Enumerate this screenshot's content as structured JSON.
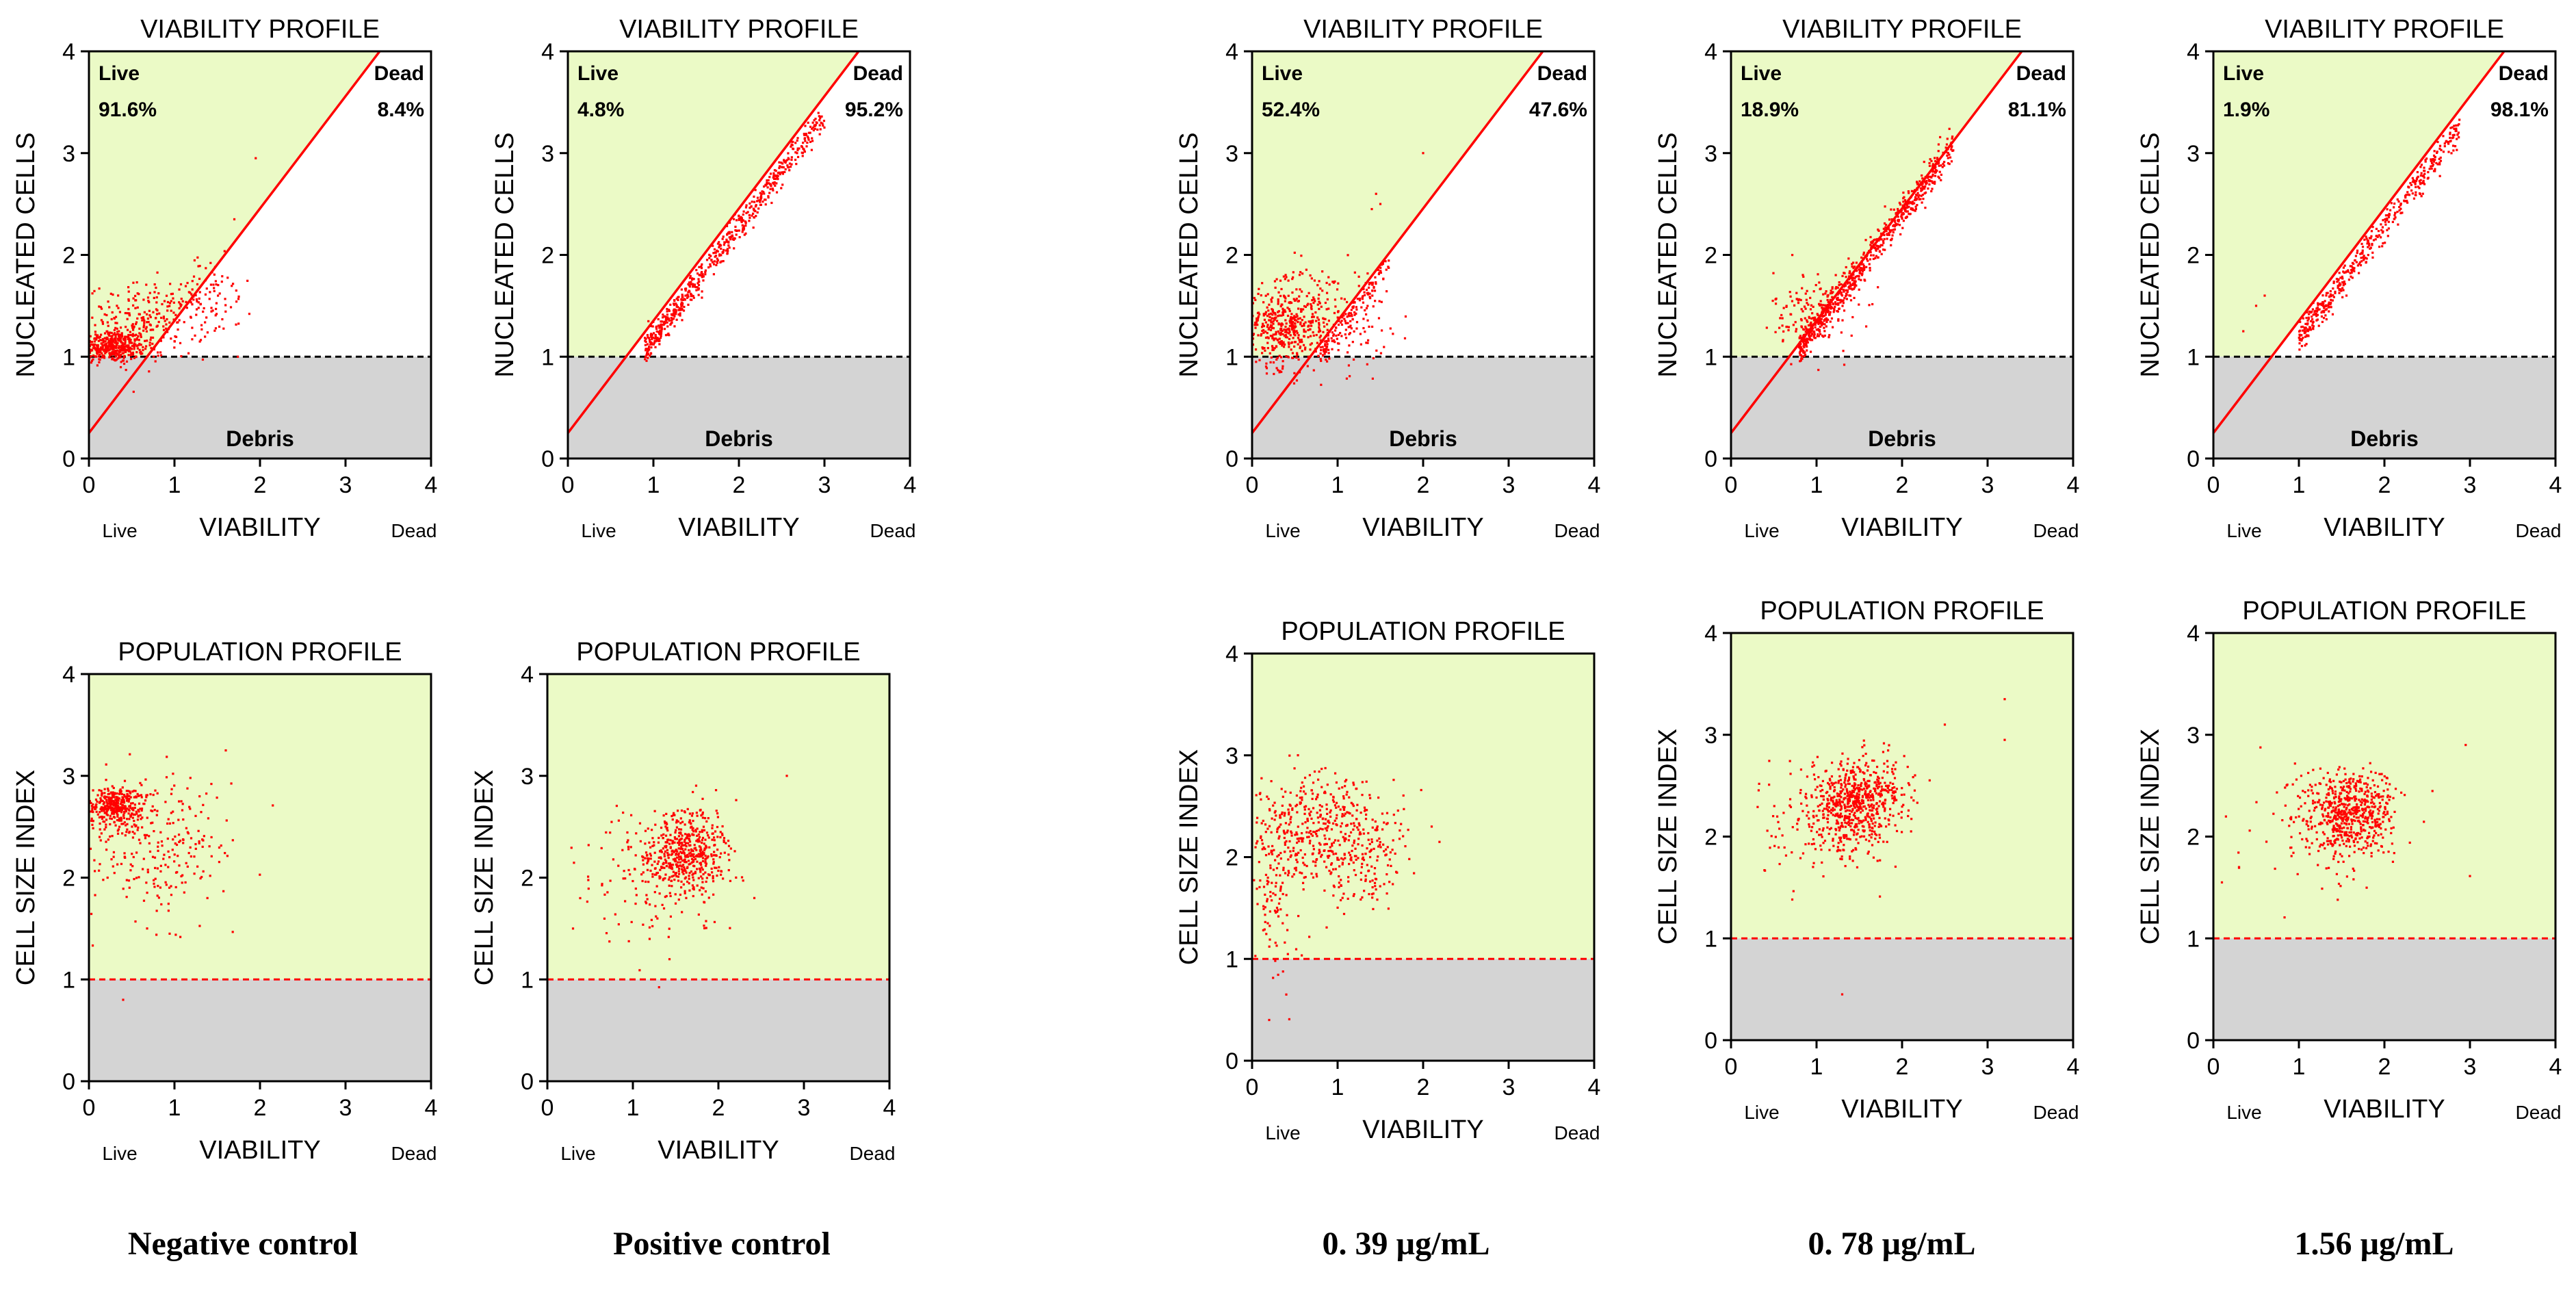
{
  "colors": {
    "live_zone": "#ebfac6",
    "debris_zone": "#d4d4d4",
    "points": "#ff0000",
    "gate_line": "#ff0000",
    "threshold_dashed_black": "#000000",
    "threshold_dashed_red": "#ff0000"
  },
  "captions": [
    "Negative control",
    "Positive control",
    "0. 39 µg/mL",
    "0. 78 µg/mL",
    "1.56 µg/mL"
  ],
  "chart_data": [
    {
      "id": "viability-negative-control",
      "type": "scatter",
      "title": "VIABILITY PROFILE",
      "ylabel": "NUCLEATED CELLS",
      "xlabel": "VIABILITY",
      "x_left_label": "Live",
      "x_right_label": "Dead",
      "xlim": [
        0,
        4
      ],
      "ylim": [
        0,
        4
      ],
      "x_ticks": [
        "0",
        "1",
        "2",
        "3",
        "4"
      ],
      "y_ticks": [
        "0",
        "1",
        "2",
        "3",
        "4"
      ],
      "threshold_y": 1,
      "gate_line": [
        [
          0,
          0.25
        ],
        [
          3.4,
          4
        ]
      ],
      "live_label": "Live",
      "live_percent": "91.6%",
      "dead_label": "Dead",
      "dead_percent": "8.4%",
      "debris_label": "Debris",
      "clusters": [
        {
          "cx": 0.25,
          "cy": 1.1,
          "sx": 0.2,
          "sy": 0.08,
          "n": 420
        },
        {
          "cx": 0.7,
          "cy": 1.35,
          "sx": 0.35,
          "sy": 0.18,
          "n": 260
        },
        {
          "cx": 1.4,
          "cy": 1.6,
          "sx": 0.25,
          "sy": 0.2,
          "n": 70
        }
      ],
      "outliers": [
        [
          1.95,
          2.95
        ],
        [
          1.7,
          2.35
        ]
      ]
    },
    {
      "id": "viability-positive-control",
      "type": "scatter",
      "title": "VIABILITY PROFILE",
      "ylabel": "NUCLEATED CELLS",
      "xlabel": "VIABILITY",
      "x_left_label": "Live",
      "x_right_label": "Dead",
      "xlim": [
        0,
        4
      ],
      "ylim": [
        0,
        4
      ],
      "x_ticks": [
        "0",
        "1",
        "2",
        "3",
        "4"
      ],
      "y_ticks": [
        "0",
        "1",
        "2",
        "3",
        "4"
      ],
      "threshold_y": 1,
      "gate_line": [
        [
          0,
          0.25
        ],
        [
          3.4,
          4
        ]
      ],
      "live_label": "Live",
      "live_percent": "4.8%",
      "dead_label": "Dead",
      "dead_percent": "95.2%",
      "debris_label": "Debris",
      "diagonal": {
        "x0": 0.9,
        "x1": 3.0,
        "n": 600,
        "offset": -0.18,
        "spread": 0.07
      }
    },
    {
      "id": "viability-0-39",
      "type": "scatter",
      "title": "VIABILITY PROFILE",
      "ylabel": "NUCLEATED CELLS",
      "xlabel": "VIABILITY",
      "x_left_label": "Live",
      "x_right_label": "Dead",
      "xlim": [
        0,
        4
      ],
      "ylim": [
        0,
        4
      ],
      "x_ticks": [
        "0",
        "1",
        "2",
        "3",
        "4"
      ],
      "y_ticks": [
        "0",
        "1",
        "2",
        "3",
        "4"
      ],
      "threshold_y": 1,
      "gate_line": [
        [
          0,
          0.25
        ],
        [
          3.4,
          4
        ]
      ],
      "live_label": "Live",
      "live_percent": "52.4%",
      "dead_label": "Dead",
      "dead_percent": "47.6%",
      "debris_label": "Debris",
      "clusters": [
        {
          "cx": 0.35,
          "cy": 1.3,
          "sx": 0.22,
          "sy": 0.2,
          "n": 380
        },
        {
          "cx": 0.9,
          "cy": 1.4,
          "sx": 0.35,
          "sy": 0.25,
          "n": 200
        }
      ],
      "diagonal": {
        "x0": 0.8,
        "x1": 1.6,
        "n": 120,
        "offset": -0.1,
        "spread": 0.07
      },
      "outliers": [
        [
          1.45,
          2.6
        ],
        [
          1.5,
          2.5
        ],
        [
          1.4,
          2.45
        ],
        [
          2.0,
          3.0
        ]
      ]
    },
    {
      "id": "viability-0-78",
      "type": "scatter",
      "title": "VIABILITY PROFILE",
      "ylabel": "NUCLEATED CELLS",
      "xlabel": "VIABILITY",
      "x_left_label": "Live",
      "x_right_label": "Dead",
      "xlim": [
        0,
        4
      ],
      "ylim": [
        0,
        4
      ],
      "x_ticks": [
        "0",
        "1",
        "2",
        "3",
        "4"
      ],
      "y_ticks": [
        "0",
        "1",
        "2",
        "3",
        "4"
      ],
      "threshold_y": 1,
      "gate_line": [
        [
          0,
          0.25
        ],
        [
          3.4,
          4
        ]
      ],
      "live_label": "Live",
      "live_percent": "18.9%",
      "dead_label": "Dead",
      "dead_percent": "81.1%",
      "debris_label": "Debris",
      "clusters": [
        {
          "cx": 1.0,
          "cy": 1.45,
          "sx": 0.25,
          "sy": 0.2,
          "n": 140
        }
      ],
      "diagonal": {
        "x0": 0.8,
        "x1": 2.6,
        "n": 700,
        "offset": -0.05,
        "spread": 0.08
      }
    },
    {
      "id": "viability-1-56",
      "type": "scatter",
      "title": "VIABILITY PROFILE",
      "ylabel": "NUCLEATED CELLS",
      "xlabel": "VIABILITY",
      "x_left_label": "Live",
      "x_right_label": "Dead",
      "xlim": [
        0,
        4
      ],
      "ylim": [
        0,
        4
      ],
      "x_ticks": [
        "0",
        "1",
        "2",
        "3",
        "4"
      ],
      "y_ticks": [
        "0",
        "1",
        "2",
        "3",
        "4"
      ],
      "threshold_y": 1,
      "gate_line": [
        [
          0,
          0.25
        ],
        [
          3.4,
          4
        ]
      ],
      "live_label": "Live",
      "live_percent": "1.9%",
      "dead_label": "Dead",
      "dead_percent": "98.1%",
      "debris_label": "Debris",
      "diagonal": {
        "x0": 1.0,
        "x1": 2.9,
        "n": 450,
        "offset": -0.18,
        "spread": 0.07
      },
      "outliers": [
        [
          0.5,
          1.5
        ],
        [
          0.6,
          1.6
        ],
        [
          0.35,
          1.25
        ]
      ]
    },
    {
      "id": "population-negative-control",
      "type": "scatter",
      "title": "POPULATION PROFILE",
      "ylabel": "CELL SIZE INDEX",
      "xlabel": "VIABILITY",
      "x_left_label": "Live",
      "x_right_label": "Dead",
      "xlim": [
        0,
        4
      ],
      "ylim": [
        0,
        4
      ],
      "x_ticks": [
        "0",
        "1",
        "2",
        "3",
        "4"
      ],
      "y_ticks": [
        "0",
        "1",
        "2",
        "3",
        "4"
      ],
      "threshold_y": 1,
      "clusters": [
        {
          "cx": 0.3,
          "cy": 2.7,
          "sx": 0.15,
          "sy": 0.1,
          "n": 350
        },
        {
          "cx": 0.8,
          "cy": 2.3,
          "sx": 0.45,
          "sy": 0.35,
          "n": 260
        }
      ],
      "outliers": [
        [
          0.4,
          0.8
        ],
        [
          1.6,
          3.25
        ]
      ]
    },
    {
      "id": "population-positive-control",
      "type": "scatter",
      "title": "POPULATION PROFILE",
      "ylabel": "CELL SIZE INDEX",
      "xlabel": "VIABILITY",
      "x_left_label": "Live",
      "x_right_label": "Dead",
      "xlim": [
        0,
        4
      ],
      "ylim": [
        0,
        4
      ],
      "x_ticks": [
        "0",
        "1",
        "2",
        "3",
        "4"
      ],
      "y_ticks": [
        "0",
        "1",
        "2",
        "3",
        "4"
      ],
      "threshold_y": 1,
      "clusters": [
        {
          "cx": 1.6,
          "cy": 2.25,
          "sx": 0.25,
          "sy": 0.2,
          "n": 500
        },
        {
          "cx": 1.2,
          "cy": 2.0,
          "sx": 0.45,
          "sy": 0.35,
          "n": 120
        }
      ],
      "outliers": [
        [
          2.8,
          3.0
        ],
        [
          0.3,
          1.5
        ]
      ]
    },
    {
      "id": "population-0-39",
      "type": "scatter",
      "title": "POPULATION PROFILE",
      "ylabel": "CELL SIZE INDEX",
      "xlabel": "VIABILITY",
      "x_left_label": "Live",
      "x_right_label": "Dead",
      "xlim": [
        0,
        4
      ],
      "ylim": [
        0,
        4
      ],
      "x_ticks": [
        "0",
        "1",
        "2",
        "3",
        "4"
      ],
      "y_ticks": [
        "0",
        "1",
        "2",
        "3",
        "4"
      ],
      "threshold_y": 1,
      "clusters": [
        {
          "cx": 0.6,
          "cy": 2.3,
          "sx": 0.35,
          "sy": 0.3,
          "n": 320
        },
        {
          "cx": 1.2,
          "cy": 2.1,
          "sx": 0.3,
          "sy": 0.3,
          "n": 260
        },
        {
          "cx": 0.25,
          "cy": 1.5,
          "sx": 0.12,
          "sy": 0.35,
          "n": 80
        }
      ],
      "outliers": [
        [
          0.2,
          0.4
        ],
        [
          0.4,
          0.65
        ],
        [
          2.1,
          2.3
        ]
      ]
    },
    {
      "id": "population-0-78",
      "type": "scatter",
      "title": "POPULATION PROFILE",
      "ylabel": "CELL SIZE INDEX",
      "xlabel": "VIABILITY",
      "x_left_label": "Live",
      "x_right_label": "Dead",
      "xlim": [
        0,
        4
      ],
      "ylim": [
        0,
        4
      ],
      "x_ticks": [
        "0",
        "1",
        "2",
        "3",
        "4"
      ],
      "y_ticks": [
        "0",
        "1",
        "2",
        "3",
        "4"
      ],
      "threshold_y": 1,
      "clusters": [
        {
          "cx": 1.5,
          "cy": 2.35,
          "sx": 0.28,
          "sy": 0.2,
          "n": 600
        },
        {
          "cx": 1.1,
          "cy": 2.1,
          "sx": 0.4,
          "sy": 0.3,
          "n": 150
        }
      ],
      "outliers": [
        [
          3.2,
          3.35
        ],
        [
          3.2,
          2.95
        ],
        [
          1.3,
          0.45
        ],
        [
          2.5,
          3.1
        ]
      ]
    },
    {
      "id": "population-1-56",
      "type": "scatter",
      "title": "POPULATION PROFILE",
      "ylabel": "CELL SIZE INDEX",
      "xlabel": "VIABILITY",
      "x_left_label": "Live",
      "x_right_label": "Dead",
      "xlim": [
        0,
        4
      ],
      "ylim": [
        0,
        4
      ],
      "x_ticks": [
        "0",
        "1",
        "2",
        "3",
        "4"
      ],
      "y_ticks": [
        "0",
        "1",
        "2",
        "3",
        "4"
      ],
      "threshold_y": 1,
      "clusters": [
        {
          "cx": 1.6,
          "cy": 2.25,
          "sx": 0.25,
          "sy": 0.2,
          "n": 550
        },
        {
          "cx": 1.3,
          "cy": 2.1,
          "sx": 0.45,
          "sy": 0.3,
          "n": 120
        }
      ],
      "outliers": [
        [
          2.95,
          2.9
        ],
        [
          0.1,
          1.55
        ],
        [
          0.3,
          1.7
        ]
      ]
    }
  ]
}
